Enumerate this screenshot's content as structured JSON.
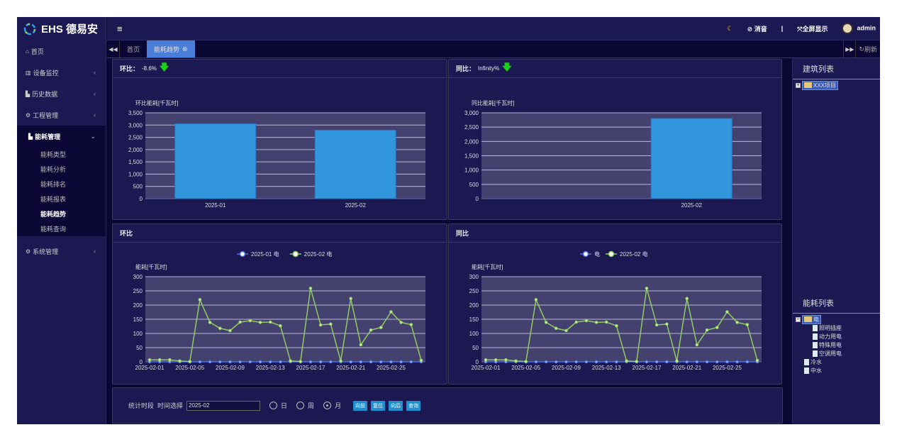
{
  "app": {
    "logo_text": "EHS 德易安"
  },
  "sidebar": {
    "items": [
      {
        "label": "首页",
        "icon": "home-icon"
      },
      {
        "label": "设备监控",
        "icon": "bank-icon"
      },
      {
        "label": "历史数据",
        "icon": "bar-chart-icon"
      },
      {
        "label": "工程管理",
        "icon": "cogs-icon"
      },
      {
        "label": "能耗管理",
        "icon": "bar-chart-icon",
        "open": true
      },
      {
        "label": "系统管理",
        "icon": "gear-icon"
      }
    ],
    "sub_items": [
      "能耗类型",
      "能耗分析",
      "能耗排名",
      "能耗报表",
      "能耗趋势",
      "能耗查询"
    ],
    "active_sub": "能耗趋势"
  },
  "header": {
    "mute": "消音",
    "divider": "|",
    "fullscreen": "全屏显示",
    "user": "admin"
  },
  "tabs": {
    "items": [
      "首页",
      "能耗趋势"
    ],
    "active": "能耗趋势",
    "refresh": "刷新"
  },
  "panels": {
    "mom": {
      "label": "环比：",
      "value": "-8.6%",
      "trend": "down"
    },
    "yoy": {
      "label": "同比：",
      "value": "Infinity%",
      "trend": "down"
    },
    "mom_line": {
      "label": "环比"
    },
    "yoy_line": {
      "label": "同比"
    }
  },
  "colors": {
    "bar": "#3296dc",
    "series1": "#4a70e0",
    "series2": "#8fcc60",
    "down_arrow": "#19d119"
  },
  "chart_data": [
    {
      "type": "bar",
      "ylabel": "环比能耗[千瓦时]",
      "categories": [
        "2025-01",
        "2025-02"
      ],
      "values": [
        3050,
        2790
      ],
      "ylim": [
        0,
        3500
      ],
      "yticks": [
        "0",
        "500",
        "1,000",
        "1,500",
        "2,000",
        "2,500",
        "3,000",
        "3,500"
      ],
      "grid": true
    },
    {
      "type": "bar",
      "ylabel": "同比能耗[千瓦时]",
      "categories": [
        "",
        "2025-02"
      ],
      "values": [
        0,
        2800
      ],
      "ylim": [
        0,
        3000
      ],
      "yticks": [
        "0",
        "500",
        "1,000",
        "1,500",
        "2,000",
        "2,500",
        "3,000"
      ],
      "grid": true
    },
    {
      "type": "line",
      "ylabel": "能耗[千瓦时]",
      "ylim": [
        0,
        300
      ],
      "yticks": [
        "0",
        "50",
        "100",
        "150",
        "200",
        "250",
        "300"
      ],
      "legend": "top",
      "x": [
        "2025-02-01",
        "2025-02-02",
        "2025-02-03",
        "2025-02-04",
        "2025-02-05",
        "2025-02-06",
        "2025-02-07",
        "2025-02-08",
        "2025-02-09",
        "2025-02-10",
        "2025-02-11",
        "2025-02-12",
        "2025-02-13",
        "2025-02-14",
        "2025-02-15",
        "2025-02-16",
        "2025-02-17",
        "2025-02-18",
        "2025-02-19",
        "2025-02-20",
        "2025-02-21",
        "2025-02-22",
        "2025-02-23",
        "2025-02-24",
        "2025-02-25",
        "2025-02-26",
        "2025-02-27",
        "2025-02-28"
      ],
      "xticks": [
        "2025-02-01",
        "2025-02-05",
        "2025-02-09",
        "2025-02-13",
        "2025-02-17",
        "2025-02-21",
        "2025-02-25"
      ],
      "series": [
        {
          "name": "2025-01 电",
          "values": [
            0,
            0,
            0,
            0,
            0,
            0,
            0,
            0,
            0,
            0,
            0,
            0,
            0,
            0,
            0,
            0,
            0,
            0,
            0,
            0,
            0,
            0,
            0,
            0,
            0,
            0,
            0,
            0
          ]
        },
        {
          "name": "2025-02 电",
          "values": [
            7,
            7,
            7,
            3,
            1,
            219,
            139,
            118,
            110,
            140,
            145,
            139,
            140,
            127,
            3,
            1,
            259,
            130,
            133,
            3,
            223,
            60,
            112,
            121,
            176,
            139,
            131,
            5
          ]
        }
      ]
    },
    {
      "type": "line",
      "ylabel": "能耗[千瓦时]",
      "ylim": [
        0,
        300
      ],
      "yticks": [
        "0",
        "50",
        "100",
        "150",
        "200",
        "250",
        "300"
      ],
      "legend": "top",
      "x": [
        "2025-02-01",
        "2025-02-02",
        "2025-02-03",
        "2025-02-04",
        "2025-02-05",
        "2025-02-06",
        "2025-02-07",
        "2025-02-08",
        "2025-02-09",
        "2025-02-10",
        "2025-02-11",
        "2025-02-12",
        "2025-02-13",
        "2025-02-14",
        "2025-02-15",
        "2025-02-16",
        "2025-02-17",
        "2025-02-18",
        "2025-02-19",
        "2025-02-20",
        "2025-02-21",
        "2025-02-22",
        "2025-02-23",
        "2025-02-24",
        "2025-02-25",
        "2025-02-26",
        "2025-02-27",
        "2025-02-28"
      ],
      "xticks": [
        "2025-02-01",
        "2025-02-05",
        "2025-02-09",
        "2025-02-13",
        "2025-02-17",
        "2025-02-21",
        "2025-02-25"
      ],
      "series": [
        {
          "name": "电",
          "values": [
            0,
            0,
            0,
            0,
            0,
            0,
            0,
            0,
            0,
            0,
            0,
            0,
            0,
            0,
            0,
            0,
            0,
            0,
            0,
            0,
            0,
            0,
            0,
            0,
            0,
            0,
            0,
            0
          ]
        },
        {
          "name": "2025-02 电",
          "values": [
            7,
            7,
            7,
            3,
            1,
            219,
            139,
            118,
            110,
            140,
            145,
            139,
            140,
            127,
            3,
            1,
            259,
            130,
            133,
            3,
            223,
            60,
            112,
            121,
            176,
            139,
            131,
            5
          ]
        }
      ]
    }
  ],
  "right": {
    "building_title": "建筑列表",
    "building_root": "XXX项目",
    "energy_title": "能耗列表",
    "energy_root": "电",
    "energy_children": [
      "照明插座",
      "动力用电",
      "特殊用电",
      "空调用电"
    ],
    "energy_others": [
      "冷水",
      "中水"
    ]
  },
  "form": {
    "period_label": "统计时段",
    "time_label": "时间选择",
    "time_value": "2025-02",
    "radios": [
      "日",
      "周",
      "月"
    ],
    "selected": "月",
    "buttons": [
      "向前",
      "复位",
      "向后",
      "查询"
    ]
  }
}
